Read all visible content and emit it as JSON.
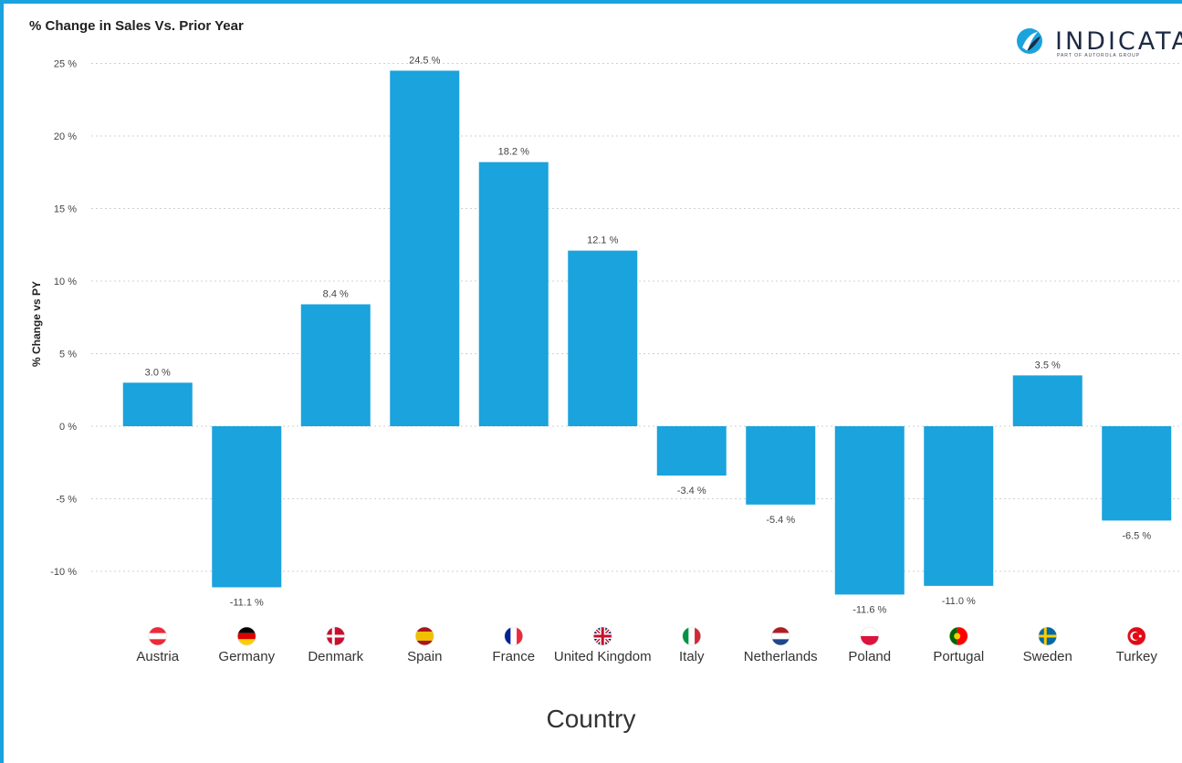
{
  "header": {
    "title": "% Change in Sales Vs. Prior Year",
    "logo_text": "INDICATA",
    "logo_sub": "PART OF AUTOROLA GROUP"
  },
  "colors": {
    "bar": "#1aa3dc",
    "frame": "#1aa3dc",
    "grid": "#d0d0d0",
    "text": "#333333"
  },
  "chart_data": {
    "type": "bar",
    "ylabel": "% Change vs PY",
    "xlabel": "Country",
    "ylim": [
      -13.5,
      26.5
    ],
    "yticks": [
      25,
      20,
      15,
      10,
      5,
      0,
      -5,
      -10
    ],
    "ytick_labels": [
      "25 %",
      "20 %",
      "15 %",
      "10 %",
      "5 %",
      "0 %",
      "-5 %",
      "-10 %"
    ],
    "grid": true,
    "categories": [
      "Austria",
      "Germany",
      "Denmark",
      "Spain",
      "France",
      "United Kingdom",
      "Italy",
      "Netherlands",
      "Poland",
      "Portugal",
      "Sweden",
      "Turkey"
    ],
    "values": [
      3.0,
      -11.1,
      8.4,
      24.5,
      18.2,
      12.1,
      -3.4,
      -5.4,
      -11.6,
      -11.0,
      3.5,
      -6.5
    ],
    "value_labels": [
      "3.0 %",
      "-11.1 %",
      "8.4 %",
      "24.5 %",
      "18.2 %",
      "12.1 %",
      "-3.4 %",
      "-5.4 %",
      "-11.6 %",
      "-11.0 %",
      "3.5 %",
      "-6.5 %"
    ],
    "flag_icons": [
      "austria-flag-icon",
      "germany-flag-icon",
      "denmark-flag-icon",
      "spain-flag-icon",
      "france-flag-icon",
      "uk-flag-icon",
      "italy-flag-icon",
      "netherlands-flag-icon",
      "poland-flag-icon",
      "portugal-flag-icon",
      "sweden-flag-icon",
      "turkey-flag-icon"
    ]
  }
}
